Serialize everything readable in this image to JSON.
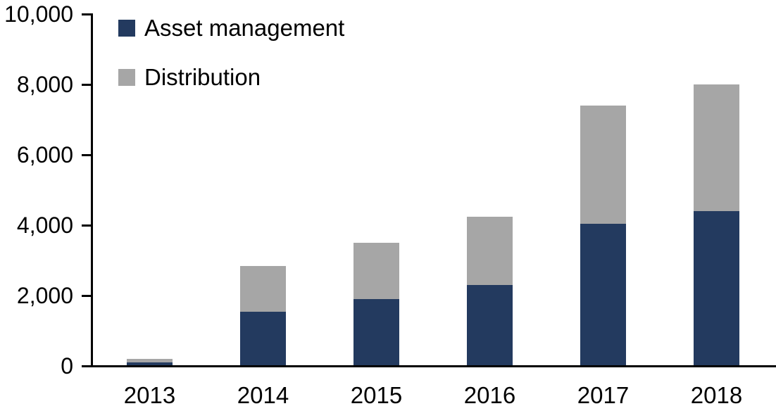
{
  "chart_data": {
    "type": "bar",
    "stacked": true,
    "title": "",
    "xlabel": "",
    "ylabel": "",
    "categories": [
      "2013",
      "2014",
      "2015",
      "2016",
      "2017",
      "2018"
    ],
    "series": [
      {
        "name": "Asset management",
        "color": "#233A5F",
        "values": [
          100,
          1550,
          1900,
          2300,
          4050,
          4400
        ]
      },
      {
        "name": "Distribution",
        "color": "#A6A6A6",
        "values": [
          100,
          1300,
          1600,
          1950,
          3350,
          3600
        ]
      }
    ],
    "totals": [
      200,
      2850,
      3500,
      4250,
      7400,
      8000
    ],
    "ylim": [
      0,
      10000
    ],
    "ytick_interval": 2000,
    "ytick_labels": [
      "0",
      "2,000",
      "4,000",
      "6,000",
      "8,000",
      "10,000"
    ],
    "grid": false,
    "legend_position": "top-left",
    "axis_color": "#000000",
    "background_color": "#FFFFFF"
  }
}
